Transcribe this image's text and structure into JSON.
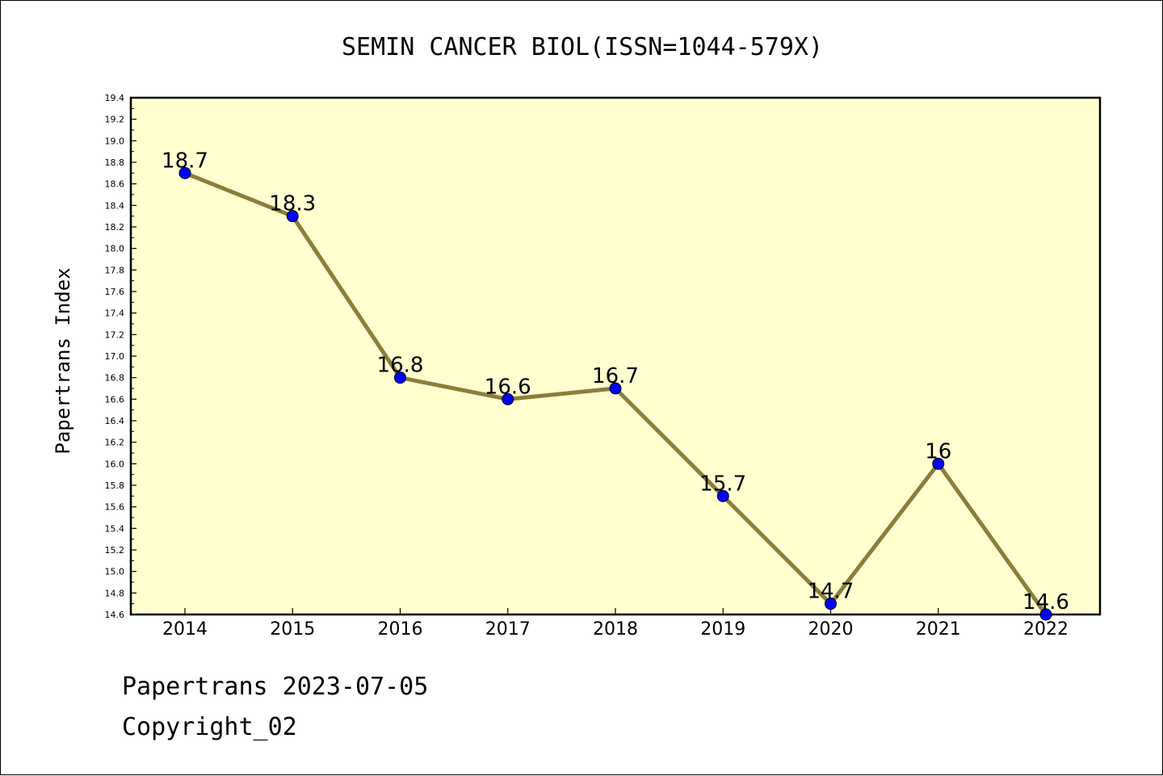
{
  "chart_data": {
    "type": "line",
    "title": "SEMIN CANCER BIOL(ISSN=1044-579X)",
    "xlabel": "",
    "ylabel": "Papertrans Index",
    "categories": [
      "2014",
      "2015",
      "2016",
      "2017",
      "2018",
      "2019",
      "2020",
      "2021",
      "2022"
    ],
    "series": [
      {
        "values": [
          18.7,
          18.3,
          16.8,
          16.6,
          16.7,
          15.7,
          14.7,
          16.0,
          14.6
        ],
        "labels": [
          "18.7",
          "18.3",
          "16.8",
          "16.6",
          "16.7",
          "15.7",
          "14.7",
          "16",
          "14.6"
        ]
      }
    ],
    "ylim": [
      14.6,
      19.4
    ],
    "y_major_step": 0.2,
    "grid": false,
    "legend": "none",
    "colors": {
      "plot_background": "#FFFFD0",
      "line": "#8B7D3A",
      "marker": "#0000FF",
      "axis": "#000000"
    }
  },
  "footer": {
    "line1": "Papertrans 2023-07-05",
    "line2": "Copyright_02"
  }
}
